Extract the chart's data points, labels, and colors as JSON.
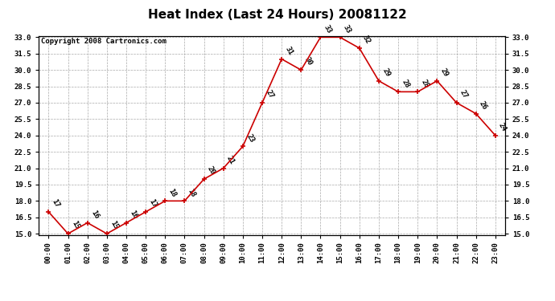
{
  "title": "Heat Index (Last 24 Hours) 20081122",
  "copyright": "Copyright 2008 Cartronics.com",
  "hours": [
    "00:00",
    "01:00",
    "02:00",
    "03:00",
    "04:00",
    "05:00",
    "06:00",
    "07:00",
    "08:00",
    "09:00",
    "10:00",
    "11:00",
    "12:00",
    "13:00",
    "14:00",
    "15:00",
    "16:00",
    "17:00",
    "18:00",
    "19:00",
    "20:00",
    "21:00",
    "22:00",
    "23:00"
  ],
  "data_values": [
    17,
    15,
    16,
    15,
    16,
    17,
    18,
    18,
    20,
    21,
    23,
    27,
    31,
    30,
    33,
    33,
    32,
    29,
    28,
    28,
    29,
    27,
    26,
    24
  ],
  "ylim_min": 15.0,
  "ylim_max": 33.0,
  "yticks": [
    15.0,
    16.5,
    18.0,
    19.5,
    21.0,
    22.5,
    24.0,
    25.5,
    27.0,
    28.5,
    30.0,
    31.5,
    33.0
  ],
  "line_color": "#cc0000",
  "marker_color": "#cc0000",
  "bg_color": "#ffffff",
  "grid_color": "#aaaaaa",
  "title_fontsize": 11,
  "annot_fontsize": 6.5,
  "tick_fontsize": 6.5,
  "copyright_fontsize": 6.5
}
